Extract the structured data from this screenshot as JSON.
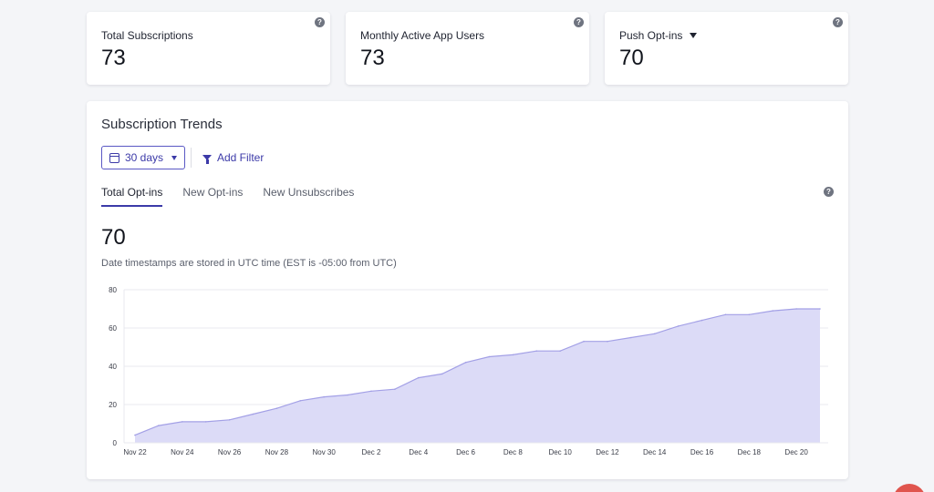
{
  "stats": [
    {
      "label": "Total Subscriptions",
      "value": "73",
      "help": "?"
    },
    {
      "label": "Monthly Active App Users",
      "value": "73",
      "help": "?"
    },
    {
      "label": "Push Opt-ins",
      "value": "70",
      "help": "?",
      "has_dropdown": true
    }
  ],
  "trends": {
    "title": "Subscription Trends",
    "range_select": "30 days",
    "add_filter": "Add Filter",
    "tabs": [
      {
        "label": "Total Opt-ins",
        "active": true
      },
      {
        "label": "New Opt-ins",
        "active": false
      },
      {
        "label": "New Unsubscribes",
        "active": false
      }
    ],
    "help": "?",
    "current_value": "70",
    "timezone_note": "Date timestamps are stored in UTC time (EST is -05:00 from UTC)"
  },
  "chart_data": {
    "type": "area",
    "x": [
      "Nov 22",
      "Nov 23",
      "Nov 24",
      "Nov 25",
      "Nov 26",
      "Nov 27",
      "Nov 28",
      "Nov 29",
      "Nov 30",
      "Dec 1",
      "Dec 2",
      "Dec 3",
      "Dec 4",
      "Dec 5",
      "Dec 6",
      "Dec 7",
      "Dec 8",
      "Dec 9",
      "Dec 10",
      "Dec 11",
      "Dec 12",
      "Dec 13",
      "Dec 14",
      "Dec 15",
      "Dec 16",
      "Dec 17",
      "Dec 18",
      "Dec 19",
      "Dec 20",
      "Dec 21"
    ],
    "x_tick_labels": [
      "Nov 22",
      "Nov 24",
      "Nov 26",
      "Nov 28",
      "Nov 30",
      "Dec 2",
      "Dec 4",
      "Dec 6",
      "Dec 8",
      "Dec 10",
      "Dec 12",
      "Dec 14",
      "Dec 16",
      "Dec 18",
      "Dec 20"
    ],
    "series": [
      {
        "values": [
          4,
          9,
          11,
          11,
          12,
          15,
          18,
          22,
          24,
          25,
          27,
          28,
          34,
          36,
          42,
          45,
          46,
          48,
          48,
          53,
          53,
          55,
          57,
          61,
          64,
          67,
          67,
          69,
          70,
          70
        ]
      }
    ],
    "y_ticks": [
      0,
      20,
      40,
      60,
      80
    ],
    "ylim": [
      0,
      80
    ],
    "grid": true,
    "colors": {
      "fill": "#dcdbf7",
      "line": "#a3a0e6",
      "grid": "#e9eaef",
      "axis": "#3a3d48"
    }
  },
  "colors": {
    "accent": "#3c3aa8",
    "background": "#f4f5f8",
    "card": "#ffffff"
  }
}
